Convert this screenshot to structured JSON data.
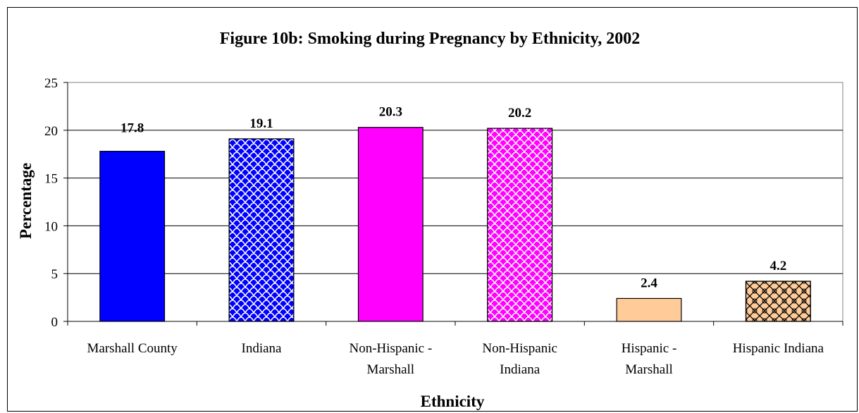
{
  "chart_data": {
    "type": "bar",
    "title": "Figure 10b:  Smoking during Pregnancy by Ethnicity, 2002",
    "xlabel": "Ethnicity",
    "ylabel": "Percentage",
    "ylim": [
      0,
      25
    ],
    "yticks": [
      "0",
      "5",
      "10",
      "15",
      "20",
      "25"
    ],
    "grid": true,
    "legend": "none",
    "categories": [
      [
        "Marshall County"
      ],
      [
        "Indiana"
      ],
      [
        "Non-Hispanic -",
        "Marshall"
      ],
      [
        "Non-Hispanic",
        "Indiana"
      ],
      [
        "Hispanic -",
        "Marshall"
      ],
      [
        "Hispanic Indiana"
      ]
    ],
    "values": [
      17.8,
      19.1,
      20.3,
      20.2,
      2.4,
      4.2
    ],
    "data_labels": [
      "17.8",
      "19.1",
      "20.3",
      "20.2",
      "2.4",
      "4.2"
    ],
    "bar_fills": [
      "#0000ff",
      "#0000ff",
      "#ff00ff",
      "#ff00ff",
      "#ffcc99",
      "#ffcc99"
    ],
    "bar_patterns": [
      "solid",
      "scales",
      "solid",
      "scales",
      "solid",
      "lattice"
    ]
  }
}
